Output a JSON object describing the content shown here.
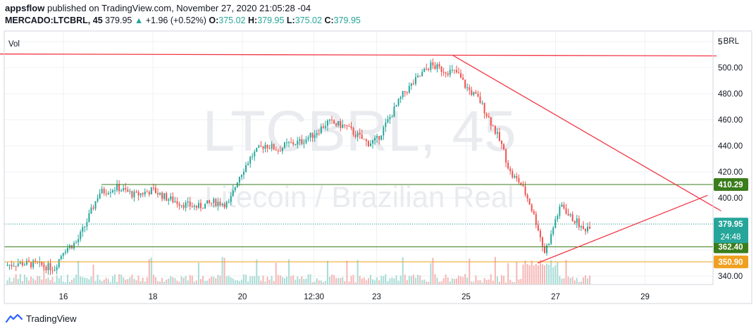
{
  "header": {
    "author": "appsflow",
    "published": "published on TradingView.com, November 27, 2020 21:05:28 -04",
    "symbol": "MERCADO:LTCBRL, 45",
    "last": "379.95",
    "change_arrow": "▲",
    "change": "+1.96 (+0.52%)",
    "open_label": "O:",
    "open": "375.02",
    "high_label": "H:",
    "high": "379.95",
    "low_label": "L:",
    "low": "375.02",
    "close_label": "C:",
    "close": "379.95"
  },
  "watermark": {
    "line1": "LTCBRL, 45",
    "line2": "Litecoin / Brazilian Real"
  },
  "vol_label": "Vol",
  "currency_label": "BRL",
  "footer": {
    "brand": "TradingView"
  },
  "colors": {
    "up": "#26a69a",
    "down": "#ef5350",
    "trendline": "#f23645",
    "support_green": "#3a7d1c",
    "support_orange": "#f0a020",
    "last_price": "#26a69a",
    "grid": "#eef0f3"
  },
  "chart_data": {
    "type": "candlestick",
    "symbol": "MERCADO:LTCBRL",
    "interval": "45",
    "y_axis_ticks": [
      340,
      360,
      380,
      400,
      420,
      440,
      460,
      480,
      500,
      520
    ],
    "y_range": [
      332,
      522
    ],
    "x_axis_ticks": [
      "16",
      "18",
      "20",
      "12:30",
      "23",
      "25",
      "27",
      "29"
    ],
    "price_path": [
      [
        14.7,
        348
      ],
      [
        15.0,
        350
      ],
      [
        15.4,
        349
      ],
      [
        15.8,
        346
      ],
      [
        16.0,
        360
      ],
      [
        16.3,
        366
      ],
      [
        16.5,
        380
      ],
      [
        16.8,
        404
      ],
      [
        17.2,
        408
      ],
      [
        17.6,
        402
      ],
      [
        18.0,
        406
      ],
      [
        18.3,
        400
      ],
      [
        18.7,
        395
      ],
      [
        19.0,
        393
      ],
      [
        19.4,
        397
      ],
      [
        19.7,
        395
      ],
      [
        19.9,
        415
      ],
      [
        20.2,
        432
      ],
      [
        20.5,
        441
      ],
      [
        20.8,
        437
      ],
      [
        21.0,
        441
      ],
      [
        21.3,
        443
      ],
      [
        21.6,
        449
      ],
      [
        21.9,
        458
      ],
      [
        22.3,
        455
      ],
      [
        22.6,
        447
      ],
      [
        22.8,
        442
      ],
      [
        23.0,
        444
      ],
      [
        23.3,
        462
      ],
      [
        23.6,
        480
      ],
      [
        23.9,
        491
      ],
      [
        24.2,
        502
      ],
      [
        24.5,
        498
      ],
      [
        24.8,
        496
      ],
      [
        25.0,
        485
      ],
      [
        25.3,
        475
      ],
      [
        25.6,
        455
      ],
      [
        25.8,
        440
      ],
      [
        26.0,
        418
      ],
      [
        26.2,
        412
      ],
      [
        26.4,
        398
      ],
      [
        26.6,
        378
      ],
      [
        26.75,
        358
      ],
      [
        26.9,
        371
      ],
      [
        27.0,
        384
      ],
      [
        27.15,
        395
      ],
      [
        27.3,
        386
      ],
      [
        27.5,
        381
      ],
      [
        27.6,
        375
      ],
      [
        27.8,
        379.95
      ]
    ],
    "horizontal_levels": [
      {
        "label": "410.29",
        "value": 410.29
      },
      {
        "label": "362.40",
        "value": 362.4
      },
      {
        "label": "350.90",
        "value": 350.9
      }
    ],
    "last_price": {
      "label": "379.95",
      "value": 379.95,
      "countdown": "24:48"
    },
    "trendlines": [
      {
        "from": [
          14.0,
          510.5
        ],
        "to": [
          30.6,
          509.0
        ]
      },
      {
        "from": [
          24.7,
          509.5
        ],
        "to": [
          30.7,
          390.0
        ]
      },
      {
        "from": [
          26.6,
          350.0
        ],
        "to": [
          30.4,
          402.0
        ]
      }
    ]
  }
}
